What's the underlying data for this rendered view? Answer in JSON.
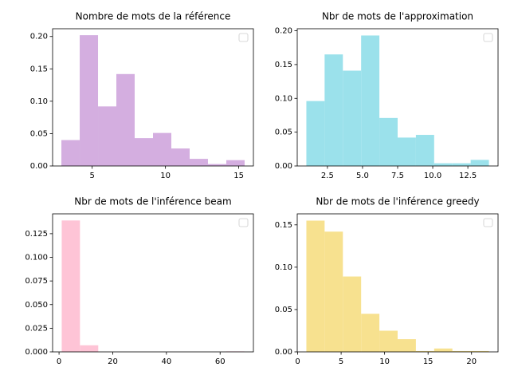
{
  "chart_data": [
    {
      "type": "histogram",
      "title": "Nombre de mots de la référence",
      "color": "#d4aee0",
      "bins": [
        2.9,
        4.15,
        5.4,
        6.65,
        7.9,
        9.15,
        10.4,
        11.65,
        12.9,
        14.15,
        15.4
      ],
      "values": [
        0.04,
        0.202,
        0.092,
        0.142,
        0.043,
        0.051,
        0.027,
        0.011,
        0.003,
        0.009
      ],
      "xlim": [
        2.3,
        16.0
      ],
      "ylim": [
        0,
        0.212
      ],
      "xticks": [
        5,
        10,
        15
      ],
      "yticks": [
        {
          "value": 0,
          "label": "0.00"
        },
        0.05,
        {
          "value": 0.1,
          "label": "0.10"
        },
        0.15,
        {
          "value": 0.2,
          "label": "0.20"
        }
      ],
      "legend": "upper right"
    },
    {
      "type": "histogram",
      "title": "Nbr de mots de l'approximation",
      "color": "#9be1eb",
      "bins": [
        1,
        2.3,
        3.6,
        4.9,
        6.2,
        7.5,
        8.8,
        10.1,
        11.4,
        12.7,
        14
      ],
      "values": [
        0.096,
        0.165,
        0.141,
        0.193,
        0.071,
        0.042,
        0.046,
        0.004,
        0.004,
        0.009
      ],
      "xlim": [
        0.35,
        14.65
      ],
      "ylim": [
        0,
        0.203
      ],
      "xticks": [
        2.5,
        {
          "value": 5,
          "label": "5.0"
        },
        7.5,
        {
          "value": 10,
          "label": "10.0"
        },
        12.5
      ],
      "yticks": [
        {
          "value": 0,
          "label": "0.00"
        },
        0.05,
        {
          "value": 0.1,
          "label": "0.10"
        },
        0.15,
        {
          "value": 0.2,
          "label": "0.20"
        }
      ],
      "legend": "upper right"
    },
    {
      "type": "histogram",
      "title": "Nbr de mots de l'inférence beam",
      "color": "#fec4d6",
      "bins": [
        1,
        7.8,
        14.6,
        21.4,
        28.2,
        35,
        41.8,
        48.6,
        55.4,
        62.2,
        69
      ],
      "values": [
        0.139,
        0.007,
        0,
        0,
        0,
        0,
        0,
        0,
        0,
        0.0005
      ],
      "xlim": [
        -2.4,
        72.4
      ],
      "ylim": [
        0,
        0.146
      ],
      "xticks": [
        0,
        20,
        40,
        60
      ],
      "yticks": [
        {
          "value": 0,
          "label": "0.000"
        },
        0.025,
        {
          "value": 0.05,
          "label": "0.050"
        },
        0.075,
        {
          "value": 0.1,
          "label": "0.100"
        },
        0.125
      ],
      "legend": "upper right"
    },
    {
      "type": "histogram",
      "title": "Nbr de mots de l'inférence greedy",
      "color": "#f7e18f",
      "bins": [
        1,
        3.1,
        5.2,
        7.3,
        9.4,
        11.5,
        13.6,
        15.7,
        17.8,
        19.9,
        22
      ],
      "values": [
        0.155,
        0.142,
        0.089,
        0.045,
        0.025,
        0.015,
        0.001,
        0.004,
        0.001,
        0.001
      ],
      "xlim": [
        -0.05,
        23.05
      ],
      "ylim": [
        0,
        0.163
      ],
      "xticks": [
        0,
        5,
        10,
        15,
        20
      ],
      "yticks": [
        {
          "value": 0,
          "label": "0.00"
        },
        0.05,
        {
          "value": 0.1,
          "label": "0.10"
        },
        0.15
      ],
      "legend": "upper right"
    }
  ]
}
